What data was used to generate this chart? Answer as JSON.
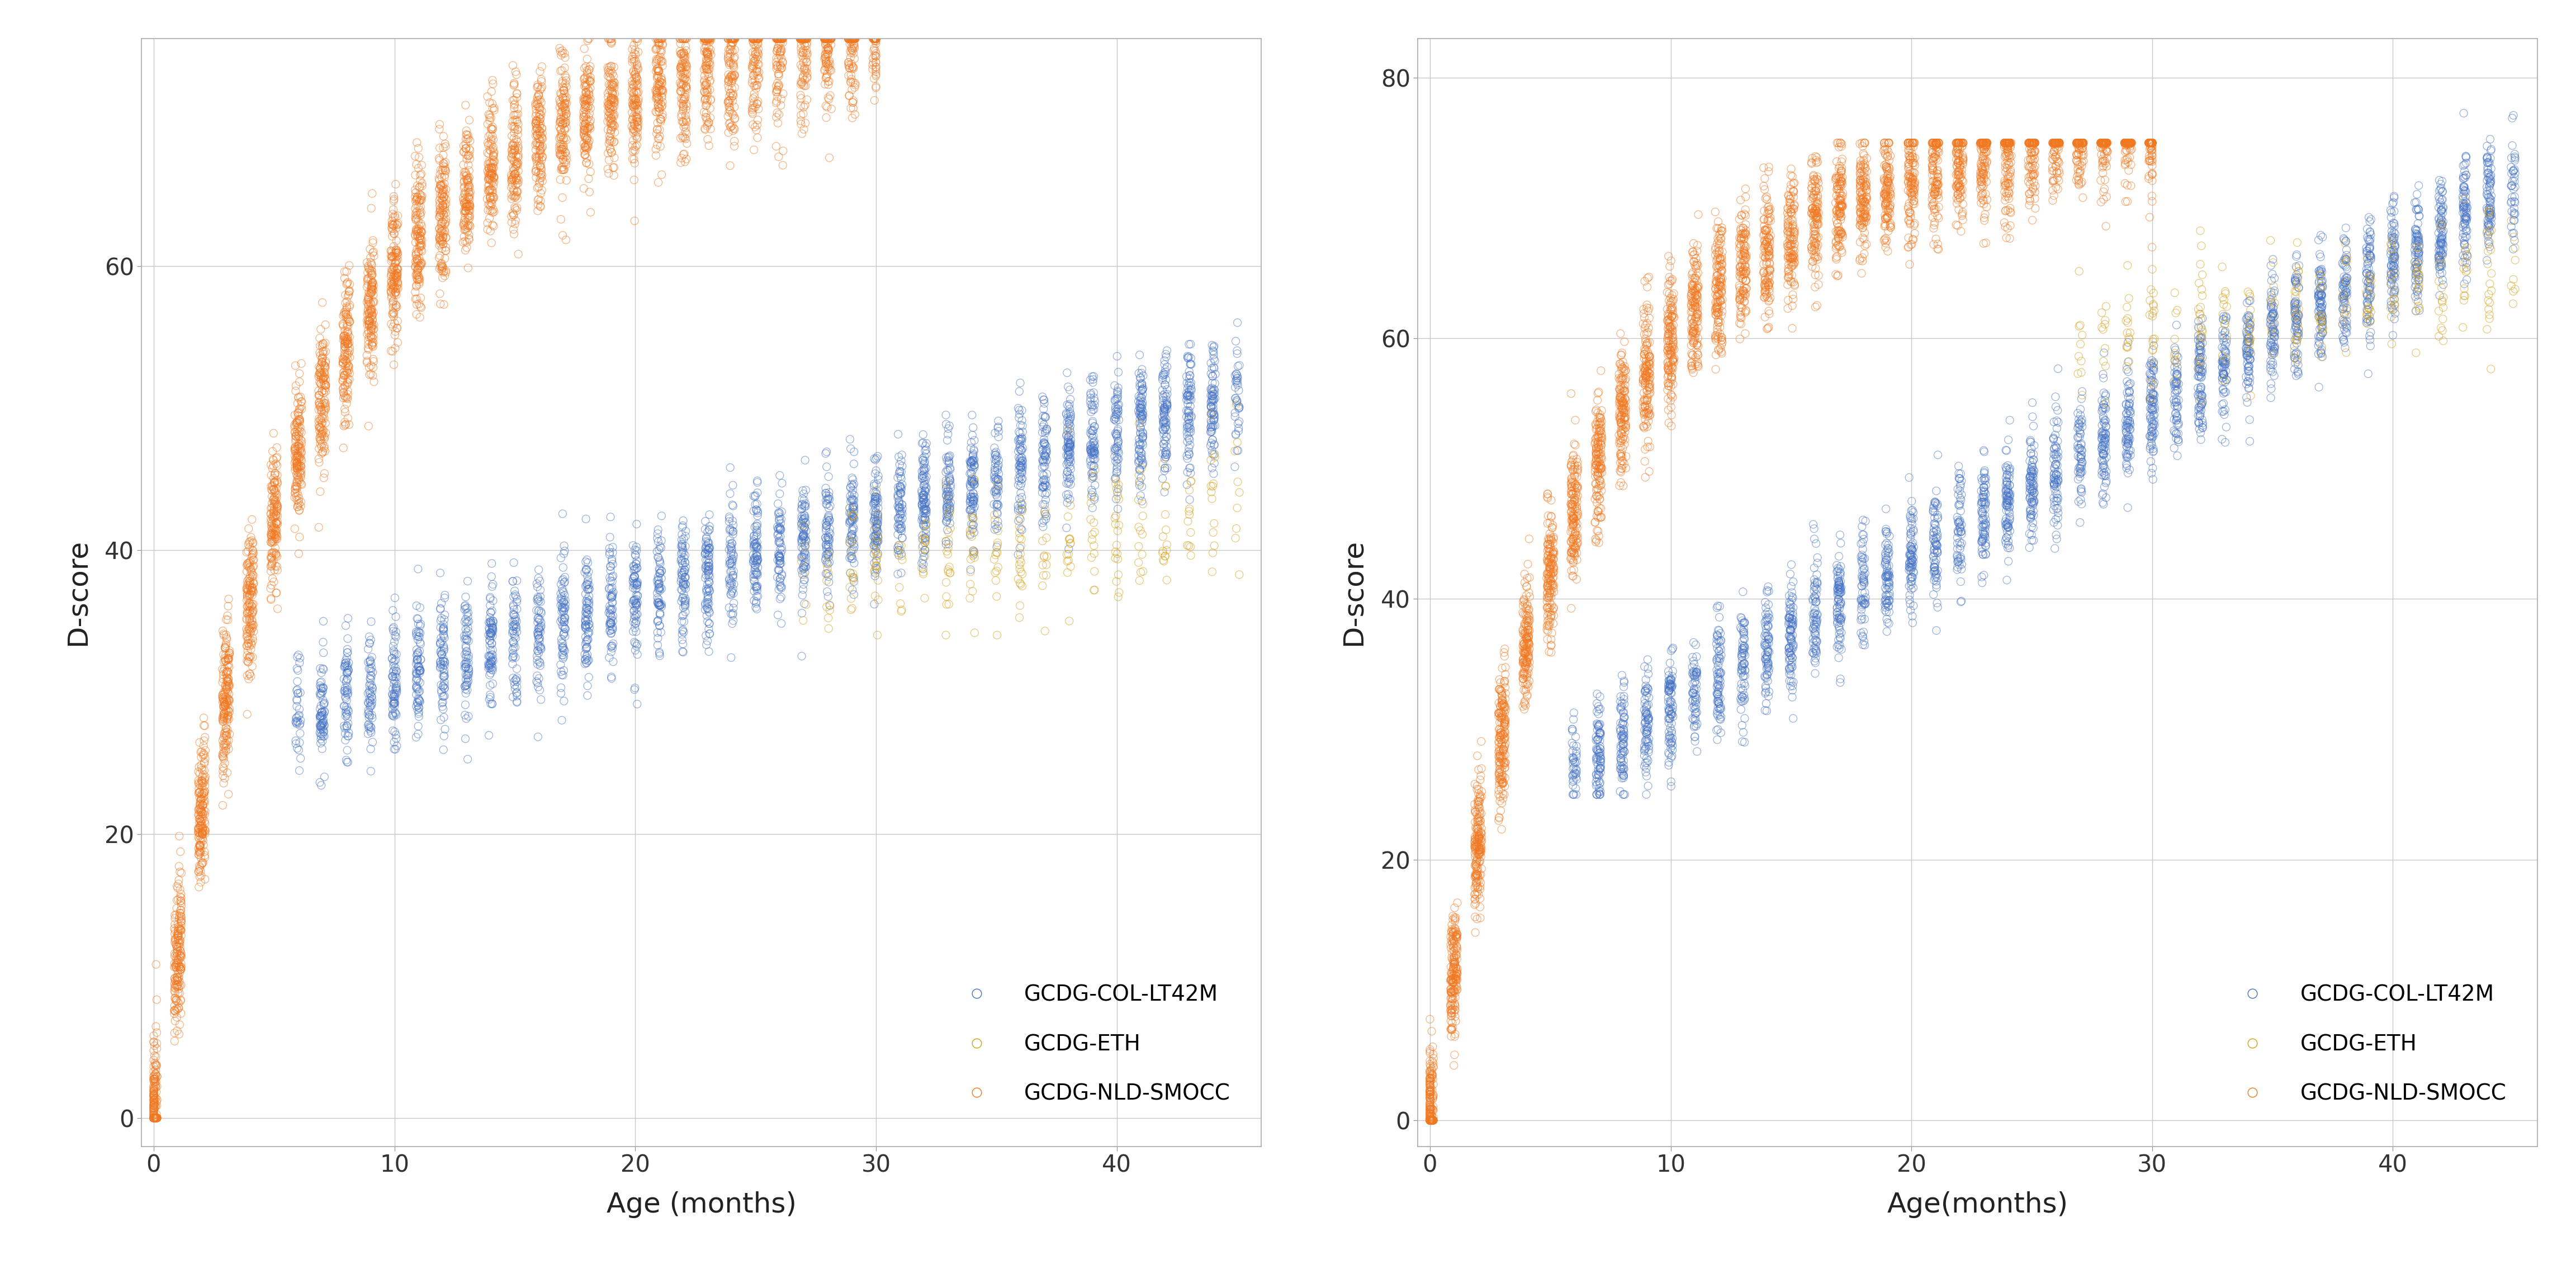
{
  "left_plot": {
    "xlabel": "Age (months)",
    "ylabel": "D-score",
    "xlim": [
      -0.5,
      46
    ],
    "ylim": [
      -2,
      76
    ],
    "xticks": [
      0,
      10,
      20,
      30,
      40
    ],
    "yticks": [
      0,
      20,
      40,
      60
    ]
  },
  "right_plot": {
    "xlabel": "Age(months)",
    "ylabel": "D-score",
    "xlim": [
      -0.5,
      46
    ],
    "ylim": [
      -2,
      83
    ],
    "xticks": [
      0,
      10,
      20,
      30,
      40
    ],
    "yticks": [
      0,
      20,
      40,
      60,
      80
    ]
  },
  "colors": {
    "blue": "#4472C4",
    "yellow": "#D4A017",
    "orange": "#F07820"
  },
  "legend_labels": [
    "GCDG-COL-LT42M",
    "GCDG-ETH",
    "GCDG-NLD-SMOCC"
  ],
  "background_color": "#FFFFFF",
  "grid_color": "#C8C8C8",
  "marker_size": 5,
  "marker_alpha": 0.55,
  "seed": 42
}
